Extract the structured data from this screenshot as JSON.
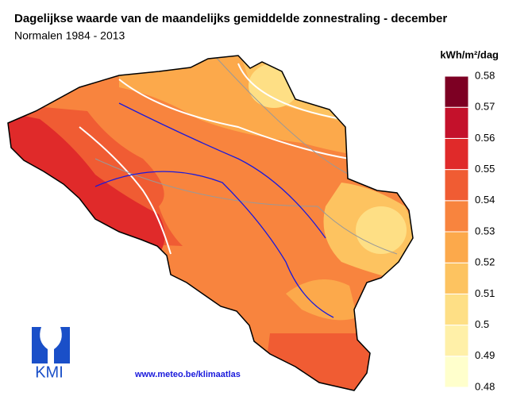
{
  "header": {
    "title": "Dagelijkse waarde van de maandelijks gemiddelde zonnestraling - december",
    "subtitle": "Normalen 1984 - 2013"
  },
  "legend": {
    "unit": "kWh/m²/dag",
    "ticks": [
      0.48,
      0.49,
      0.5,
      0.51,
      0.52,
      0.53,
      0.54,
      0.55,
      0.56,
      0.57,
      0.58
    ],
    "colors": [
      "#ffffcc",
      "#fff0a8",
      "#fedf85",
      "#fdc360",
      "#fca94b",
      "#f8843e",
      "#f05c33",
      "#e02a2a",
      "#c4112b",
      "#7d0023"
    ]
  },
  "footer": {
    "url": "www.meteo.be/klimaatlas",
    "logo": "KMI"
  }
}
